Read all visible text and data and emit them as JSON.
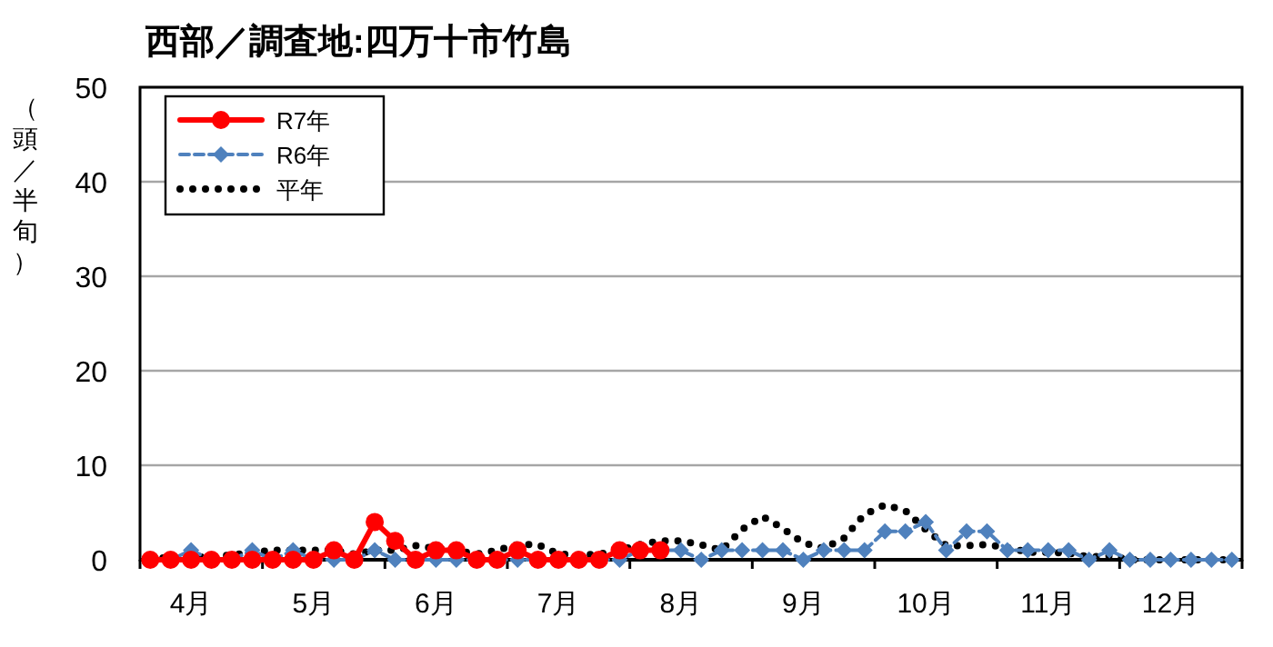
{
  "chart_data": {
    "type": "line",
    "title": "西部／調査地:四万十市竹島",
    "ylabel": "（頭／半旬）",
    "categories": [
      null,
      null,
      "4月",
      null,
      null,
      null,
      null,
      null,
      "5月",
      null,
      null,
      null,
      null,
      null,
      "6月",
      null,
      null,
      null,
      null,
      null,
      "7月",
      null,
      null,
      null,
      null,
      null,
      "8月",
      null,
      null,
      null,
      null,
      null,
      "9月",
      null,
      null,
      null,
      null,
      null,
      "10月",
      null,
      null,
      null,
      null,
      null,
      "11月",
      null,
      null,
      null,
      null,
      null,
      "12月",
      null,
      null,
      null
    ],
    "ylim": [
      0,
      50
    ],
    "yticks": [
      0,
      10,
      20,
      30,
      40,
      50
    ],
    "grid": "y",
    "legend": "top left",
    "series": [
      {
        "name": "R7年",
        "color": "#ff0000",
        "marker": "circle",
        "line_style": "solid",
        "values": [
          0,
          0,
          0,
          0,
          0,
          0,
          0,
          0,
          0,
          1,
          0,
          4,
          2,
          0,
          1,
          1,
          0,
          0,
          1,
          0,
          0,
          0,
          0,
          1,
          1,
          1,
          null,
          null,
          null,
          null,
          null,
          null,
          null,
          null,
          null,
          null,
          null,
          null,
          null,
          null,
          null,
          null,
          null,
          null,
          null,
          null,
          null,
          null,
          null,
          null,
          null,
          null,
          null,
          null
        ]
      },
      {
        "name": "R6年",
        "color": "#4f81bd",
        "marker": "diamond",
        "line_style": "dashed",
        "values": [
          0,
          0,
          1,
          0,
          0,
          1,
          0,
          1,
          0,
          0,
          0,
          1,
          0,
          0,
          0,
          0,
          0,
          0,
          0,
          0,
          0,
          0,
          0,
          0,
          1,
          1,
          1,
          0,
          1,
          1,
          1,
          1,
          0,
          1,
          1,
          1,
          3,
          3,
          4,
          1,
          3,
          3,
          1,
          1,
          1,
          1,
          0,
          1,
          0,
          0,
          0,
          0,
          0,
          0
        ]
      },
      {
        "name": "平年",
        "color": "#000000",
        "marker": "none",
        "line_style": "dotted",
        "values": [
          0.2,
          0.2,
          0.3,
          0.3,
          0.5,
          0.8,
          1,
          1,
          1,
          1,
          0.6,
          1,
          1,
          1.5,
          1.2,
          1,
          0.6,
          1,
          1.6,
          1.6,
          0.6,
          0.5,
          0.6,
          1,
          1.6,
          2,
          2,
          1.6,
          1,
          3.2,
          4.6,
          3.3,
          1.8,
          1.2,
          2.3,
          4.8,
          5.8,
          5.2,
          3.2,
          1.5,
          1.5,
          1.6,
          1.3,
          0.8,
          0.8,
          0.7,
          0.3,
          0.4,
          0,
          0,
          0,
          0,
          0,
          0
        ]
      }
    ]
  }
}
